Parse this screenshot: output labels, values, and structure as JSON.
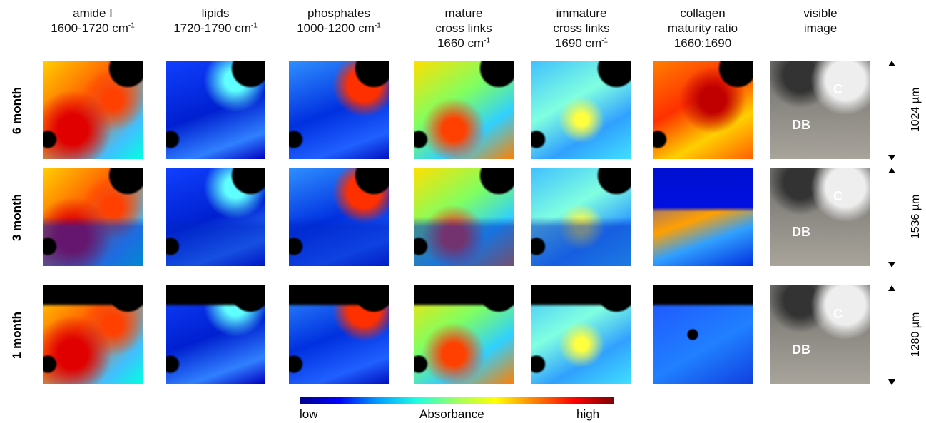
{
  "columns": [
    {
      "lines": [
        {
          "text": "amide I"
        },
        {
          "text": "1600-1720 cm",
          "sup": "-1"
        }
      ]
    },
    {
      "lines": [
        {
          "text": "lipids"
        },
        {
          "text": "1720-1790 cm",
          "sup": "-1"
        }
      ]
    },
    {
      "lines": [
        {
          "text": "phosphates"
        },
        {
          "text": "1000-1200 cm",
          "sup": "-1"
        }
      ]
    },
    {
      "lines": [
        {
          "text": "mature"
        },
        {
          "text": "cross links"
        },
        {
          "text": "1660 cm",
          "sup": "-1"
        }
      ]
    },
    {
      "lines": [
        {
          "text": "immature"
        },
        {
          "text": "cross links"
        },
        {
          "text": "1690 cm",
          "sup": "-1"
        }
      ]
    },
    {
      "lines": [
        {
          "text": "collagen"
        },
        {
          "text": "maturity ratio"
        },
        {
          "text": "1660:1690"
        }
      ]
    },
    {
      "lines": [
        {
          "text": "visible"
        },
        {
          "text": "image"
        }
      ]
    }
  ],
  "rows": [
    {
      "label": "6 month",
      "scale": "1024 µm",
      "visible_labels": [
        "C",
        "DB"
      ]
    },
    {
      "label": "3 month",
      "scale": "1536 µm",
      "visible_labels": [
        "C",
        "DB"
      ]
    },
    {
      "label": "1 month",
      "scale": "1280 µm",
      "visible_labels": [
        "C",
        "DB"
      ]
    }
  ],
  "colorbar": {
    "low": "low",
    "title": "Absorbance",
    "high": "high"
  }
}
